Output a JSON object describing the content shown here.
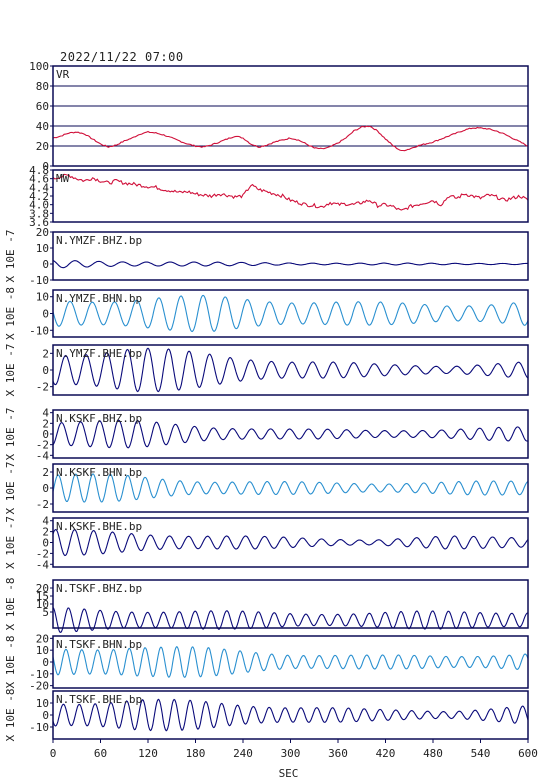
{
  "timestamp": "2022/11/22 07:00",
  "xaxis": {
    "label": "SEC",
    "ticks": [
      0,
      60,
      120,
      180,
      240,
      300,
      360,
      420,
      480,
      540,
      600
    ],
    "range": [
      0,
      600
    ]
  },
  "colors": {
    "red": "#d0103a",
    "navy": "#0a0a7a",
    "light_blue": "#2a90d0",
    "frame": "#0a0a55",
    "grid": "#0a0a55"
  },
  "chart_data": [
    {
      "type": "line",
      "label": "VR",
      "ylabel": "",
      "ylim": [
        0,
        100
      ],
      "yticks": [
        0,
        20,
        40,
        60,
        80,
        100
      ],
      "grid": true,
      "color": "red",
      "x": [
        0,
        10,
        20,
        30,
        40,
        50,
        60,
        70,
        80,
        90,
        100,
        110,
        120,
        130,
        140,
        150,
        160,
        170,
        180,
        190,
        200,
        210,
        220,
        230,
        240,
        250,
        260,
        270,
        280,
        290,
        300,
        310,
        320,
        330,
        340,
        350,
        360,
        370,
        380,
        390,
        400,
        410,
        420,
        430,
        440,
        450,
        460,
        470,
        480,
        490,
        500,
        510,
        520,
        530,
        540,
        550,
        560,
        570,
        580,
        590,
        600
      ],
      "y": [
        28,
        30,
        33,
        34,
        32,
        27,
        22,
        19,
        21,
        25,
        28,
        32,
        34,
        33,
        31,
        28,
        25,
        22,
        20,
        19,
        21,
        24,
        27,
        30,
        28,
        22,
        19,
        21,
        24,
        26,
        28,
        26,
        22,
        18,
        17,
        19,
        23,
        28,
        35,
        39,
        40,
        35,
        27,
        20,
        15,
        17,
        20,
        22,
        24,
        27,
        30,
        33,
        36,
        38,
        38,
        37,
        35,
        32,
        28,
        24,
        20
      ]
    },
    {
      "type": "line",
      "label": "MW",
      "ylabel": "",
      "ylim": [
        3.6,
        4.8
      ],
      "yticks": [
        "4.8",
        "4.6",
        "4.4",
        "4.2",
        "4.0",
        "3.8",
        "3.6"
      ],
      "grid": false,
      "color": "red",
      "x": [
        0,
        10,
        20,
        30,
        40,
        50,
        60,
        70,
        80,
        90,
        100,
        110,
        120,
        130,
        140,
        150,
        160,
        170,
        180,
        190,
        200,
        210,
        220,
        230,
        240,
        250,
        260,
        270,
        280,
        290,
        300,
        310,
        320,
        330,
        340,
        350,
        360,
        370,
        380,
        390,
        400,
        410,
        420,
        430,
        440,
        450,
        460,
        470,
        480,
        490,
        500,
        510,
        520,
        530,
        540,
        550,
        560,
        570,
        580,
        590,
        600
      ],
      "y": [
        4.6,
        4.65,
        4.68,
        4.6,
        4.55,
        4.62,
        4.55,
        4.5,
        4.55,
        4.5,
        4.48,
        4.45,
        4.42,
        4.4,
        4.35,
        4.32,
        4.28,
        4.3,
        4.25,
        4.22,
        4.2,
        4.25,
        4.22,
        4.18,
        4.2,
        4.45,
        4.35,
        4.3,
        4.25,
        4.2,
        4.1,
        4.05,
        4.0,
        3.98,
        3.95,
        4.05,
        4.0,
        4.02,
        4.0,
        4.05,
        4.1,
        3.98,
        4.0,
        3.95,
        3.85,
        3.95,
        4.0,
        4.05,
        4.1,
        4.0,
        4.2,
        4.15,
        4.25,
        4.2,
        4.15,
        4.22,
        4.18,
        4.1,
        4.15,
        4.2,
        4.1
      ]
    },
    {
      "type": "line",
      "label": "N.YMZF.BHZ.bp",
      "ylabel": "X 10E -7",
      "ylim": [
        -10,
        20
      ],
      "yticks": [
        -10,
        0,
        10,
        20
      ],
      "grid": false,
      "color": "navy",
      "amplitude": [
        2.5,
        1.8,
        1.2,
        0.8,
        0.6,
        0.5,
        0.5
      ],
      "period": 30
    },
    {
      "type": "line",
      "label": "N.YMZF.BHN.bp",
      "ylabel": "X 10E -8",
      "ylim": [
        -14,
        14
      ],
      "yticks": [
        10,
        0,
        -10
      ],
      "grid": false,
      "color": "light_blue",
      "amplitude": [
        9,
        10,
        11,
        9,
        7,
        6,
        8
      ],
      "period": 28
    },
    {
      "type": "line",
      "label": "N.YMZF.BHE.bp",
      "ylabel": "X 10E -7",
      "ylim": [
        -3,
        3
      ],
      "yticks": [
        2,
        0,
        -2
      ],
      "grid": false,
      "color": "navy",
      "amplitude": [
        2.4,
        2.8,
        2.2,
        1.2,
        0.8,
        0.6,
        1.0
      ],
      "period": 26
    },
    {
      "type": "line",
      "label": "N.KSKF.BHZ.bp",
      "ylabel": "X 10E -7",
      "ylim": [
        -4.5,
        4.5
      ],
      "yticks": [
        4,
        2,
        0,
        -2,
        -4
      ],
      "grid": false,
      "color": "navy",
      "amplitude": [
        3.0,
        2.6,
        1.6,
        1.0,
        0.8,
        1.0,
        1.4
      ],
      "period": 24
    },
    {
      "type": "line",
      "label": "N.KSKF.BHN.bp",
      "ylabel": "X 10E -7",
      "ylim": [
        -3,
        3
      ],
      "yticks": [
        2,
        0,
        -2
      ],
      "grid": false,
      "color": "light_blue",
      "amplitude": [
        2.0,
        1.6,
        1.0,
        0.8,
        0.7,
        0.8,
        1.0
      ],
      "period": 22
    },
    {
      "type": "line",
      "label": "N.KSKF.BHE.bp",
      "ylabel": "X 10E -7",
      "ylim": [
        -4.5,
        4.5
      ],
      "yticks": [
        4,
        2,
        0,
        -2,
        -4
      ],
      "grid": false,
      "color": "navy",
      "amplitude": [
        2.5,
        2.0,
        1.4,
        1.0,
        0.6,
        1.2,
        1.2
      ],
      "period": 24
    },
    {
      "type": "line",
      "label": "N.TSKF.BHZ.bp",
      "ylabel": "X 10E -8",
      "ylim": [
        -5,
        25
      ],
      "yticks": [
        20,
        15,
        10,
        5
      ],
      "grid": false,
      "color": "navy",
      "amplitude": [
        8,
        7,
        6,
        5,
        5,
        6,
        6
      ],
      "period": 20
    },
    {
      "type": "line",
      "label": "N.TSKF.BHN.bp",
      "ylabel": "X 10E -8",
      "ylim": [
        -22,
        22
      ],
      "yticks": [
        20,
        10,
        0,
        -10,
        -20
      ],
      "grid": false,
      "color": "light_blue",
      "amplitude": [
        12,
        16,
        12,
        8,
        6,
        6,
        8
      ],
      "period": 20
    },
    {
      "type": "line",
      "label": "N.TSKF.BHE.bp",
      "ylabel": "X 10E -8",
      "ylim": [
        -20,
        20
      ],
      "yticks": [
        10,
        0,
        -10
      ],
      "grid": false,
      "color": "navy",
      "amplitude": [
        12,
        14,
        12,
        8,
        5,
        4,
        8
      ],
      "period": 20
    }
  ]
}
